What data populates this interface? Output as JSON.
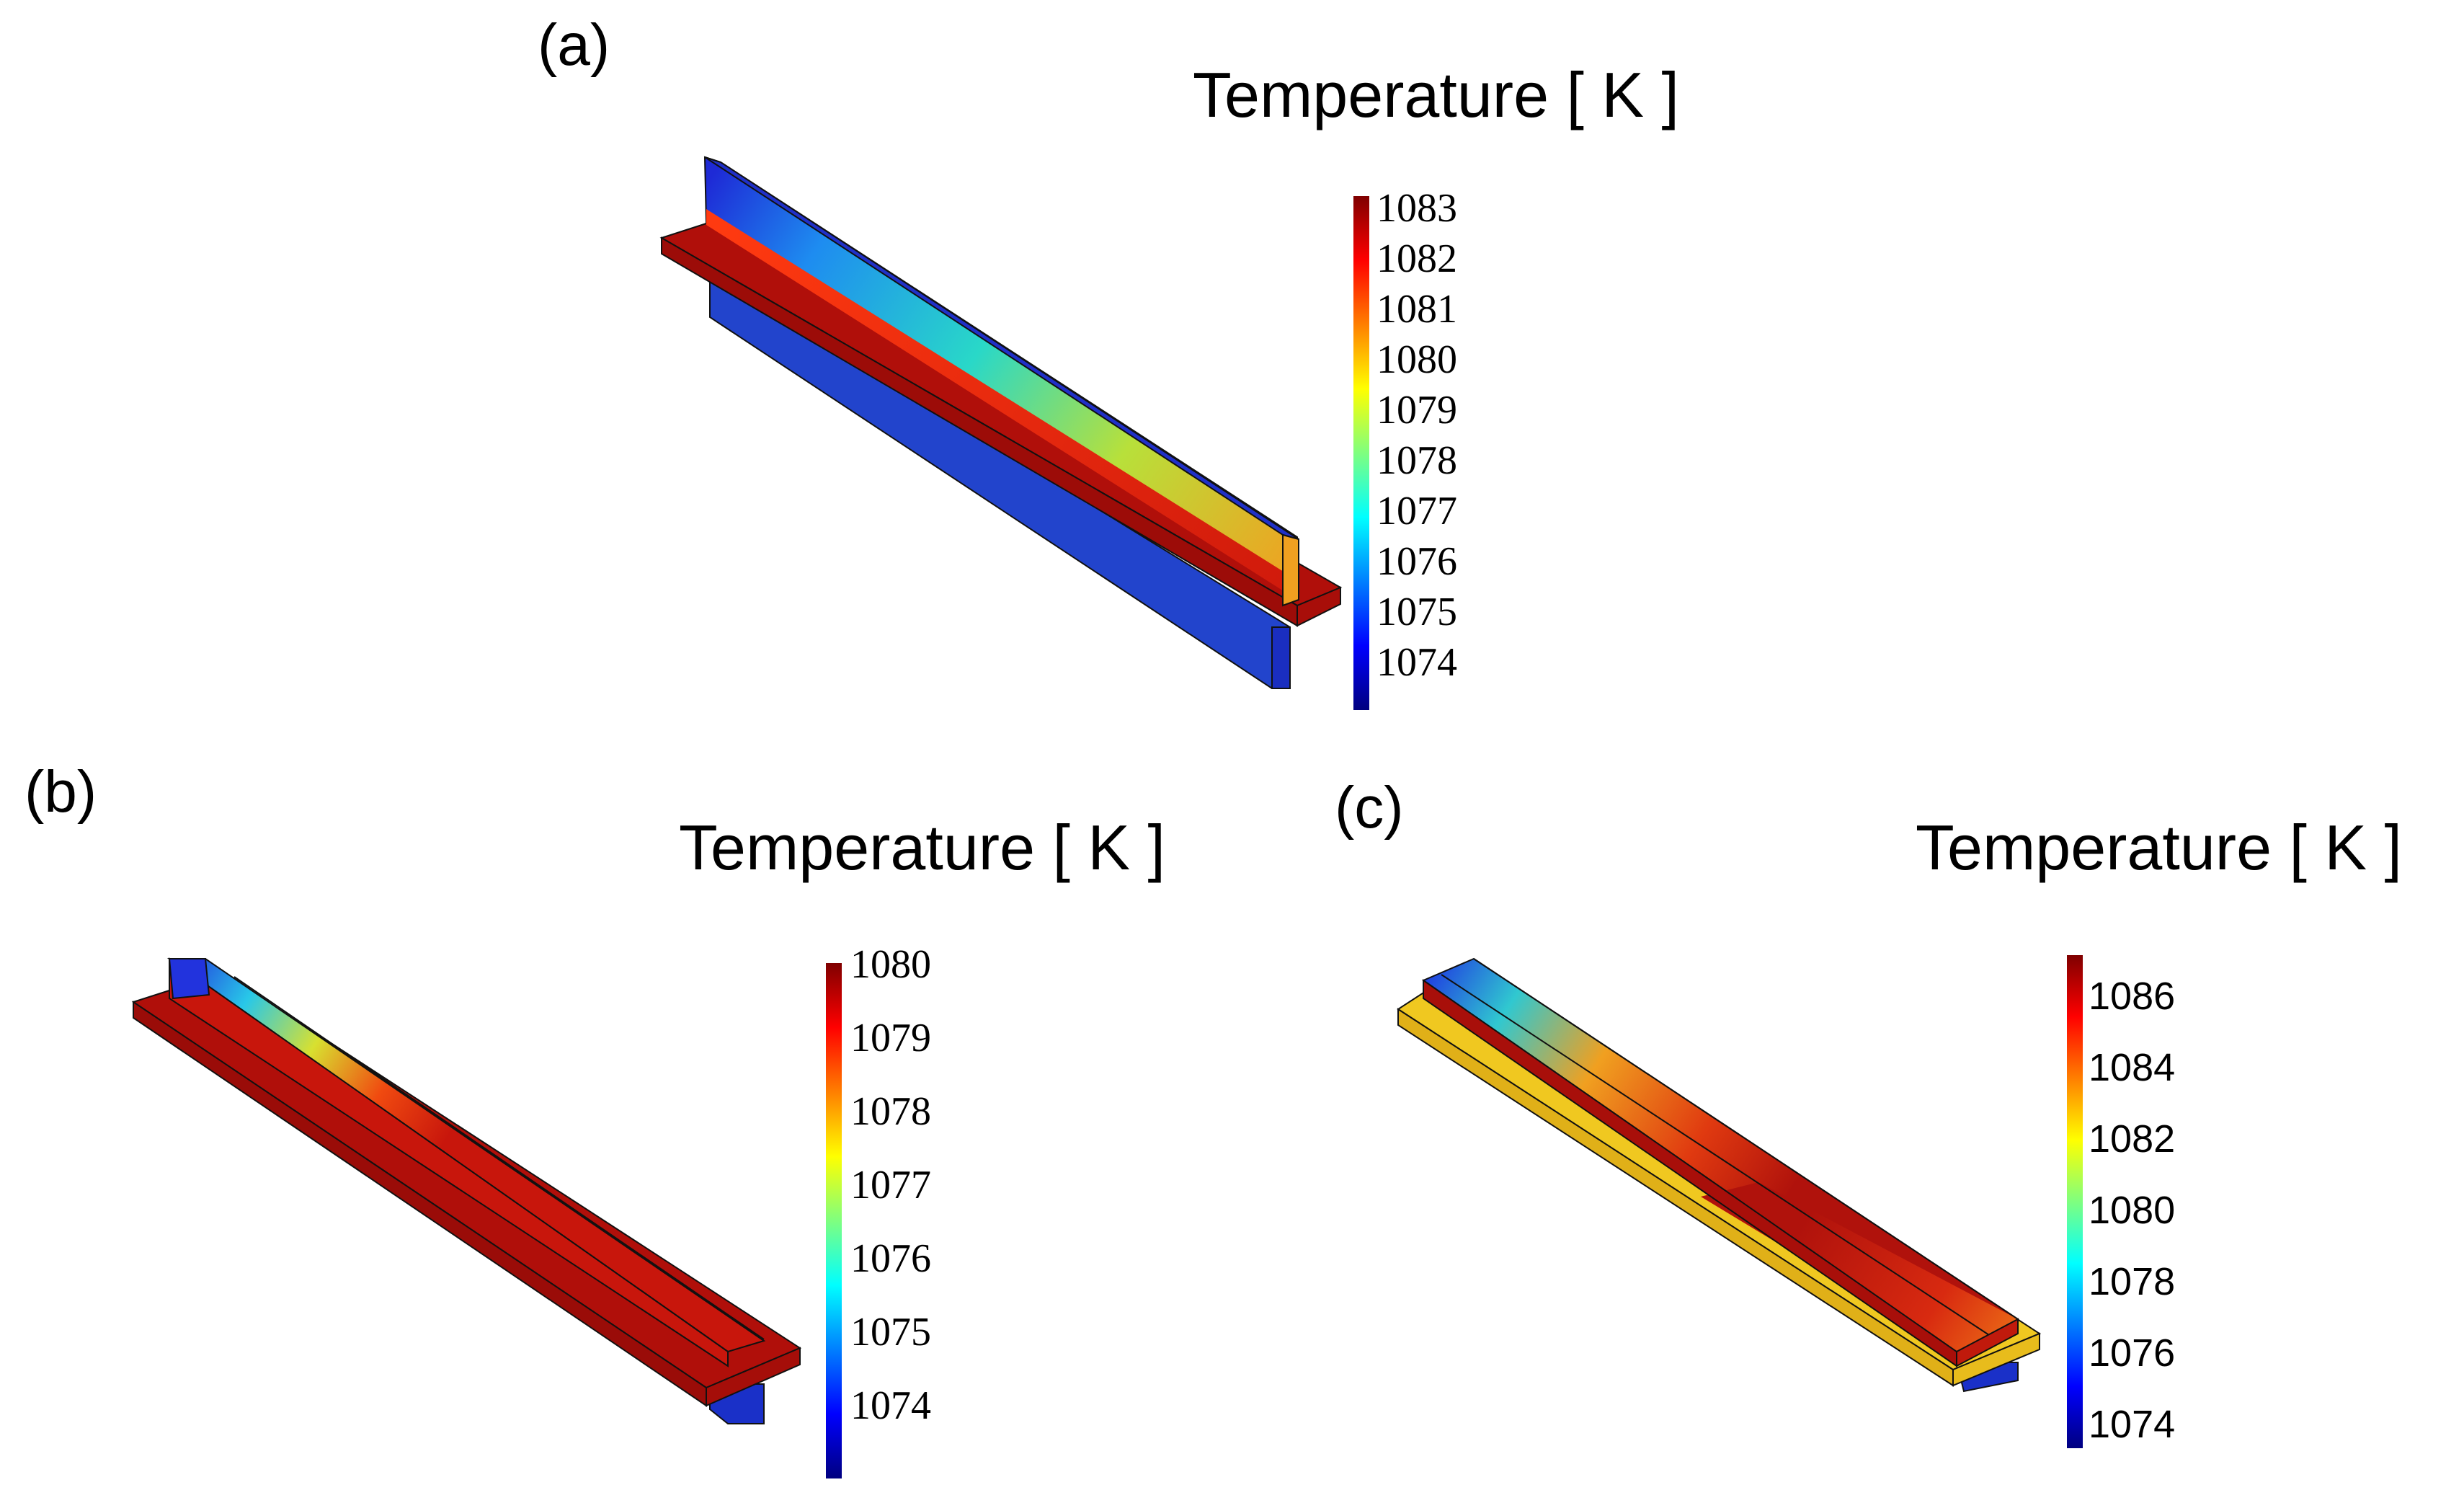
{
  "colors": {
    "jet": [
      "#00007F",
      "#0000FF",
      "#007FFF",
      "#00FFFF",
      "#7FFF7F",
      "#FFFF00",
      "#FF7F00",
      "#FF0000",
      "#7F0000"
    ],
    "hot": "#B00F0A",
    "edge": "#111111"
  },
  "panels": [
    {
      "label": "(a)",
      "colorbar_title": "Temperature [ K ]",
      "ticks": [
        "1083",
        "1082",
        "1081",
        "1080",
        "1079",
        "1078",
        "1077",
        "1076",
        "1075",
        "1074"
      ]
    },
    {
      "label": "(b)",
      "colorbar_title": "Temperature [ K ]",
      "ticks": [
        "1080",
        "1079",
        "1078",
        "1077",
        "1076",
        "1075",
        "1074"
      ]
    },
    {
      "label": "(c)",
      "colorbar_title": "Temperature [ K ]",
      "ticks": [
        "1086",
        "1084",
        "1082",
        "1080",
        "1078",
        "1076",
        "1074"
      ]
    }
  ]
}
